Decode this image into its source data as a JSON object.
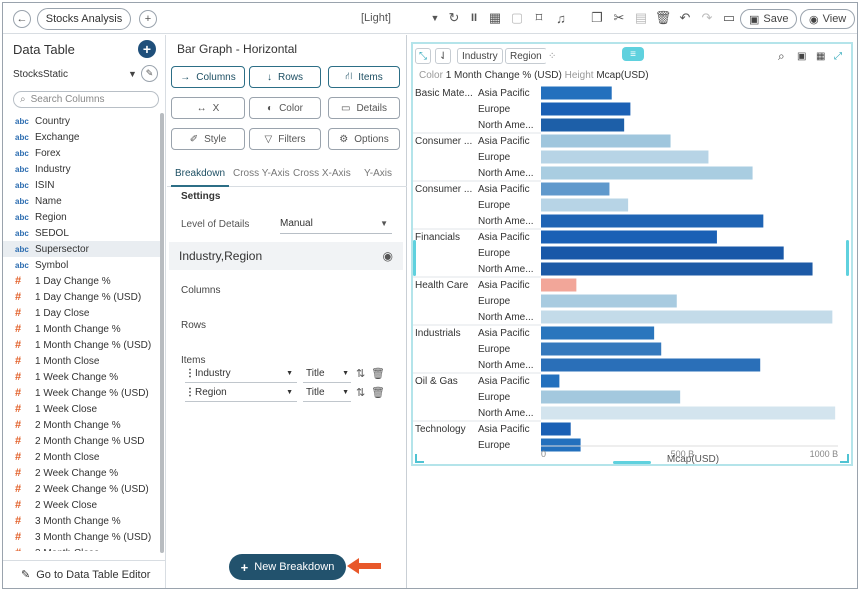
{
  "toolbar": {
    "tab_title": "Stocks Analysis",
    "theme": "[Light]",
    "save_label": "Save",
    "view_label": "View"
  },
  "left_panel": {
    "title": "Data Table",
    "source": "StocksStatic",
    "search_placeholder": "Search Columns",
    "columns": [
      {
        "type": "abc",
        "name": "Country"
      },
      {
        "type": "abc",
        "name": "Exchange"
      },
      {
        "type": "abc",
        "name": "Forex"
      },
      {
        "type": "abc",
        "name": "Industry"
      },
      {
        "type": "abc",
        "name": "ISIN"
      },
      {
        "type": "abc",
        "name": "Name"
      },
      {
        "type": "abc",
        "name": "Region"
      },
      {
        "type": "abc",
        "name": "SEDOL"
      },
      {
        "type": "abc",
        "name": "Supersector",
        "selected": true
      },
      {
        "type": "abc",
        "name": "Symbol"
      },
      {
        "type": "#",
        "name": "1 Day Change %"
      },
      {
        "type": "#",
        "name": "1 Day Change % (USD)"
      },
      {
        "type": "#",
        "name": "1 Day Close"
      },
      {
        "type": "#",
        "name": "1 Month Change %"
      },
      {
        "type": "#",
        "name": "1 Month Change % (USD)"
      },
      {
        "type": "#",
        "name": "1 Month Close"
      },
      {
        "type": "#",
        "name": "1 Week Change %"
      },
      {
        "type": "#",
        "name": "1 Week Change % (USD)"
      },
      {
        "type": "#",
        "name": "1 Week Close"
      },
      {
        "type": "#",
        "name": "2 Month Change %"
      },
      {
        "type": "#",
        "name": "2 Month Change % USD"
      },
      {
        "type": "#",
        "name": "2 Month Close"
      },
      {
        "type": "#",
        "name": "2 Week Change %"
      },
      {
        "type": "#",
        "name": "2 Week Change % (USD)"
      },
      {
        "type": "#",
        "name": "2 Week Close"
      },
      {
        "type": "#",
        "name": "3 Month Change %"
      },
      {
        "type": "#",
        "name": "3 Month Change % (USD)"
      },
      {
        "type": "#",
        "name": "3 Month Close"
      }
    ],
    "goto_label": "Go to Data Table Editor"
  },
  "mid_panel": {
    "title": "Bar Graph - Horizontal",
    "buttons": {
      "columns": "Columns",
      "rows": "Rows",
      "items": "Items",
      "x": "X",
      "color": "Color",
      "details": "Details",
      "style": "Style",
      "filters": "Filters",
      "options": "Options"
    },
    "subtabs": [
      "Breakdown",
      "Cross Y-Axis",
      "Cross X-Axis",
      "Y-Axis"
    ],
    "settings_label": "Settings",
    "lod_label": "Level of Details",
    "lod_value": "Manual",
    "breakdown_name": "Industry,Region",
    "columns_label": "Columns",
    "rows_label": "Rows",
    "items_label": "Items",
    "items": [
      {
        "field": "Industry",
        "mode": "Title"
      },
      {
        "field": "Region",
        "mode": "Title"
      }
    ],
    "new_breakdown_label": "New Breakdown"
  },
  "viz": {
    "chips": [
      "Industry",
      "Region"
    ],
    "legend_color_label": "Color",
    "legend_color_value": "1 Month Change % (USD)",
    "legend_height_label": "Height",
    "legend_height_value": "Mcap(USD)"
  },
  "chart_data": {
    "type": "bar",
    "orientation": "horizontal",
    "xlabel": "Mcap(USD)",
    "xlim": [
      0,
      1050
    ],
    "x_ticks": [
      "0",
      "500 B",
      "1000 B"
    ],
    "groups": [
      {
        "label": "Basic Mate...",
        "rows": [
          {
            "region": "Asia Pacific",
            "value": 250,
            "color": "#2370bd"
          },
          {
            "region": "Europe",
            "value": 316,
            "color": "#1a60b5"
          },
          {
            "region": "North Ame...",
            "value": 294,
            "color": "#1d5fa8"
          }
        ]
      },
      {
        "label": "Consumer ...",
        "rows": [
          {
            "region": "Asia Pacific",
            "value": 458,
            "color": "#9fc6dd"
          },
          {
            "region": "Europe",
            "value": 592,
            "color": "#b7d4e6"
          },
          {
            "region": "North Ame...",
            "value": 748,
            "color": "#a9cde1"
          }
        ]
      },
      {
        "label": "Consumer ...",
        "rows": [
          {
            "region": "Asia Pacific",
            "value": 242,
            "color": "#6099cc"
          },
          {
            "region": "Europe",
            "value": 308,
            "color": "#b7d4e6"
          },
          {
            "region": "North Ame...",
            "value": 786,
            "color": "#1f64b4"
          }
        ]
      },
      {
        "label": "Financials",
        "rows": [
          {
            "region": "Asia Pacific",
            "value": 622,
            "color": "#1a60b5"
          },
          {
            "region": "Europe",
            "value": 858,
            "color": "#1958a8"
          },
          {
            "region": "North Ame...",
            "value": 960,
            "color": "#1d5aa6"
          }
        ]
      },
      {
        "label": "Health Care",
        "rows": [
          {
            "region": "Asia Pacific",
            "value": 125,
            "color": "#f2a699"
          },
          {
            "region": "Europe",
            "value": 480,
            "color": "#a8cbe0"
          },
          {
            "region": "North Ame...",
            "value": 1030,
            "color": "#c3dbe9"
          }
        ]
      },
      {
        "label": "Industrials",
        "rows": [
          {
            "region": "Asia Pacific",
            "value": 400,
            "color": "#2a76bd"
          },
          {
            "region": "Europe",
            "value": 425,
            "color": "#3579bd"
          },
          {
            "region": "North Ame...",
            "value": 775,
            "color": "#2a6fb8"
          }
        ]
      },
      {
        "label": "Oil & Gas",
        "rows": [
          {
            "region": "Asia Pacific",
            "value": 65,
            "color": "#2370bd"
          },
          {
            "region": "Europe",
            "value": 492,
            "color": "#a3c8de"
          },
          {
            "region": "North Ame...",
            "value": 1040,
            "color": "#d3e4ee"
          }
        ]
      },
      {
        "label": "Technology",
        "rows": [
          {
            "region": "Asia Pacific",
            "value": 105,
            "color": "#1a60b5"
          },
          {
            "region": "Europe",
            "value": 140,
            "color": "#2370bd"
          }
        ]
      }
    ]
  }
}
